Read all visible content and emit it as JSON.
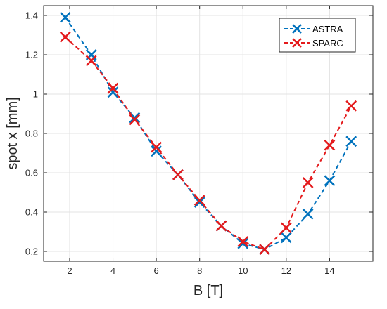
{
  "chart_data": {
    "type": "line",
    "title": "",
    "xlabel": "B [T]",
    "ylabel": "spot x [mm]",
    "xlim": [
      0.8,
      16
    ],
    "ylim": [
      0.15,
      1.45
    ],
    "x_ticks": [
      2,
      4,
      6,
      8,
      10,
      12,
      14
    ],
    "y_ticks": [
      0.2,
      0.4,
      0.6,
      0.8,
      1,
      1.2,
      1.4
    ],
    "grid": true,
    "legend_position": "top-right",
    "marker": "x",
    "line_style": "dashed",
    "series": [
      {
        "name": "ASTRA",
        "color": "#0072BD",
        "x": [
          1.8,
          3,
          4,
          5,
          6,
          7,
          8,
          9,
          10,
          11,
          12,
          13,
          14,
          15
        ],
        "y": [
          1.39,
          1.2,
          1.01,
          0.88,
          0.71,
          0.59,
          0.45,
          0.33,
          0.24,
          0.21,
          0.27,
          0.39,
          0.56,
          0.76
        ]
      },
      {
        "name": "SPARC",
        "color": "#E41A1C",
        "x": [
          1.8,
          3,
          4,
          5,
          6,
          7,
          8,
          9,
          10,
          11,
          12,
          13,
          14,
          15
        ],
        "y": [
          1.29,
          1.17,
          1.03,
          0.87,
          0.73,
          0.59,
          0.46,
          0.33,
          0.25,
          0.21,
          0.32,
          0.55,
          0.74,
          0.94
        ]
      }
    ]
  }
}
